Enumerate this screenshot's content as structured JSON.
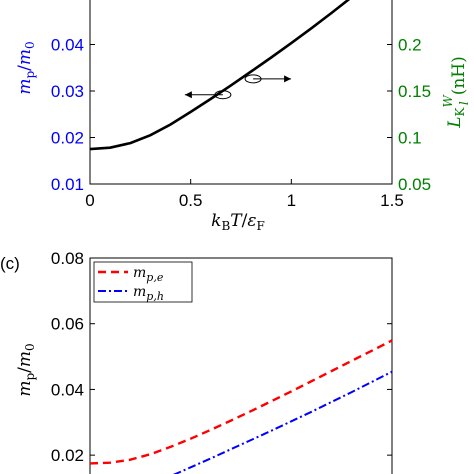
{
  "chart_data": [
    {
      "id": "top",
      "type": "line",
      "xlim": [
        0,
        1.5
      ],
      "ylim": [
        0.01,
        0.05
      ],
      "ylim_right": [
        0.05,
        0.25
      ],
      "x_ticks": [
        "0",
        "0.5",
        "1",
        "1.5"
      ],
      "y_ticks": [
        "0.01",
        "0.02",
        "0.03",
        "0.04"
      ],
      "y2_ticks": [
        "0.05",
        "0.1",
        "0.15",
        "0.2"
      ],
      "xlabel": "kBT/εF",
      "ylabel": "mp/m0",
      "ylabel_right": "LK W/l (nH)",
      "left_axis_color": "#0000ff",
      "right_axis_color": "#008000",
      "series": [
        {
          "color": "#000000",
          "x": [
            0,
            0.1,
            0.2,
            0.3,
            0.4,
            0.5,
            0.6,
            0.7,
            0.8,
            0.9,
            1.0,
            1.1,
            1.2,
            1.3
          ],
          "y": [
            0.0175,
            0.0178,
            0.0188,
            0.0205,
            0.0228,
            0.0255,
            0.0283,
            0.0312,
            0.0342,
            0.0372,
            0.0403,
            0.0435,
            0.0468,
            0.0502
          ]
        }
      ],
      "annotations": [
        {
          "type": "ellipse-arrow",
          "x": 0.66,
          "y": 0.0292,
          "direction": "left"
        },
        {
          "type": "ellipse-arrow",
          "x": 0.81,
          "y": 0.0326,
          "direction": "right"
        }
      ]
    },
    {
      "id": "c",
      "type": "line",
      "panel_label": "(c)",
      "xlim": [
        0,
        1.5
      ],
      "ylim": [
        0.01,
        0.08
      ],
      "y_ticks": [
        "0.02",
        "0.04",
        "0.06",
        "0.08"
      ],
      "ylabel": "mp/m0",
      "series": [
        {
          "name": "mp,e",
          "color": "#ff0000",
          "dash": "8,5",
          "x": [
            0,
            0.1,
            0.2,
            0.3,
            0.4,
            0.5,
            0.6,
            0.7,
            0.8,
            0.9,
            1.0,
            1.1,
            1.2,
            1.3,
            1.4,
            1.5
          ],
          "y": [
            0.0175,
            0.0177,
            0.0186,
            0.0203,
            0.0225,
            0.025,
            0.0277,
            0.0305,
            0.0334,
            0.0364,
            0.0394,
            0.0425,
            0.0456,
            0.0487,
            0.0518,
            0.0549
          ]
        },
        {
          "name": "mp,h",
          "color": "#0000ff",
          "dash": "8,3,2,3",
          "x": [
            0.27,
            0.4,
            0.5,
            0.6,
            0.7,
            0.8,
            0.9,
            1.0,
            1.1,
            1.2,
            1.3,
            1.4,
            1.5
          ],
          "y": [
            0.01,
            0.0136,
            0.0163,
            0.019,
            0.0218,
            0.0246,
            0.0274,
            0.0303,
            0.0332,
            0.0362,
            0.0392,
            0.0423,
            0.0454
          ]
        }
      ]
    }
  ]
}
